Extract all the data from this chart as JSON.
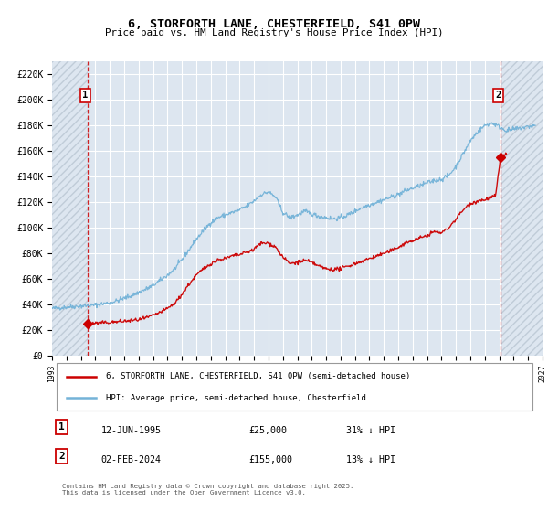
{
  "title": "6, STORFORTH LANE, CHESTERFIELD, S41 0PW",
  "subtitle": "Price paid vs. HM Land Registry's House Price Index (HPI)",
  "legend_line1": "6, STORFORTH LANE, CHESTERFIELD, S41 0PW (semi-detached house)",
  "legend_line2": "HPI: Average price, semi-detached house, Chesterfield",
  "annotation1_date": "12-JUN-1995",
  "annotation1_price": "£25,000",
  "annotation1_hpi": "31% ↓ HPI",
  "annotation2_date": "02-FEB-2024",
  "annotation2_price": "£155,000",
  "annotation2_hpi": "13% ↓ HPI",
  "copyright": "Contains HM Land Registry data © Crown copyright and database right 2025.\nThis data is licensed under the Open Government Licence v3.0.",
  "price_paid_color": "#cc0000",
  "hpi_color": "#74b3d8",
  "background_color": "#dde6f0",
  "grid_color": "#ffffff",
  "sale1_date_num": 1995.45,
  "sale1_price": 25000,
  "sale2_date_num": 2024.09,
  "sale2_price": 155000,
  "xmin": 1993.0,
  "xmax": 2027.0,
  "ymin": 0,
  "ymax": 230000,
  "yticks": [
    0,
    20000,
    40000,
    60000,
    80000,
    100000,
    120000,
    140000,
    160000,
    180000,
    200000,
    220000
  ]
}
